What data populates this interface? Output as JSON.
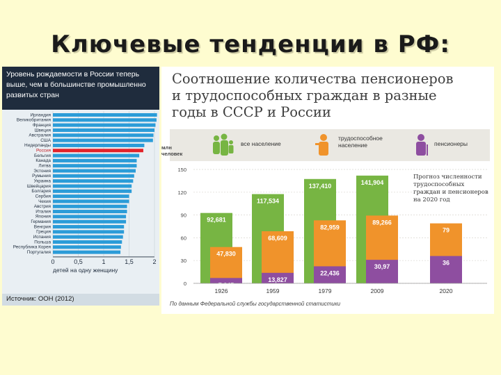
{
  "slide": {
    "title": "Ключевые тенденции в РФ:"
  },
  "left_chart": {
    "header": "Уровень рождаемости в России теперь выше, чем в большинстве промышленно развитых стран",
    "xlabel": "детей на одну женщину",
    "source": "Источник: ООН (2012)",
    "highlight_color": "#e2232a",
    "bar_color": "#2b9cd8"
  },
  "right_chart": {
    "title_lines": [
      "Соотношение количества пенсионеров",
      "и трудоспособных граждан в разные",
      "годы в СССР и России"
    ],
    "units": "млн человек",
    "forecast_note_lines": [
      "Прогноз численности",
      "трудоспособных",
      "граждан и пенсионеров",
      "на 2020 год"
    ],
    "source": "По данным Федеральной службы государственной статистики",
    "legend": [
      {
        "label": "все население",
        "color": "#77b543",
        "icon": "family-icon"
      },
      {
        "label": "трудоспособное население",
        "color": "#f0932b",
        "icon": "worker-icon"
      },
      {
        "label": "пенсионеры",
        "color": "#8e4ea0",
        "icon": "pensioner-icon"
      }
    ]
  },
  "chart_data": [
    {
      "type": "bar",
      "orientation": "horizontal",
      "title": "Уровень рождаемости в России теперь выше, чем в большинстве промышленно развитых стран",
      "xlabel": "детей на одну женщину",
      "xlim": [
        0,
        2
      ],
      "xticks": [
        "0",
        "0,5",
        "1",
        "1,5",
        "2"
      ],
      "categories": [
        "Ирландия",
        "Великобритания",
        "Франция",
        "Швеция",
        "Австралия",
        "США",
        "Нидерланды",
        "Россия",
        "Бельгия",
        "Канада",
        "Литва",
        "Эстония",
        "Румыния",
        "Украина",
        "Швейцария",
        "Болгария",
        "Сербия",
        "Чехия",
        "Австрия",
        "Италия",
        "Япония",
        "Германия",
        "Венгрия",
        "Греция",
        "Испания",
        "Польша",
        "Республика Корея",
        "Португалия"
      ],
      "values": [
        2.05,
        2.04,
        2.02,
        2.0,
        1.98,
        1.97,
        1.8,
        1.78,
        1.7,
        1.65,
        1.65,
        1.63,
        1.6,
        1.58,
        1.55,
        1.55,
        1.5,
        1.5,
        1.46,
        1.46,
        1.44,
        1.44,
        1.4,
        1.4,
        1.38,
        1.36,
        1.34,
        1.33
      ],
      "highlight": "Россия",
      "source": "Источник: ООН (2012)"
    },
    {
      "type": "bar",
      "title": "Соотношение количества пенсионеров и трудоспособных граждан в разные годы в СССР и России",
      "ylabel": "млн человек",
      "ylim": [
        0,
        150
      ],
      "yticks": [
        0,
        30,
        60,
        90,
        120,
        150
      ],
      "categories": [
        "1926",
        "1959",
        "1979",
        "2009",
        "2020"
      ],
      "series": [
        {
          "name": "все население",
          "values": [
            92.681,
            117.534,
            137.41,
            141.904,
            null
          ],
          "labels": [
            "92,681",
            "117,534",
            "137,410",
            "141,904",
            ""
          ]
        },
        {
          "name": "трудоспособное население",
          "values": [
            47.83,
            68.609,
            82.959,
            89.266,
            79
          ],
          "labels": [
            "47,830",
            "68,609",
            "82,959",
            "89,266",
            "79"
          ]
        },
        {
          "name": "пенсионеры",
          "values": [
            7.045,
            13.827,
            22.436,
            30.97,
            36
          ],
          "labels": [
            "7,045",
            "13,827",
            "22,436",
            "30,97",
            "36"
          ]
        }
      ]
    }
  ]
}
